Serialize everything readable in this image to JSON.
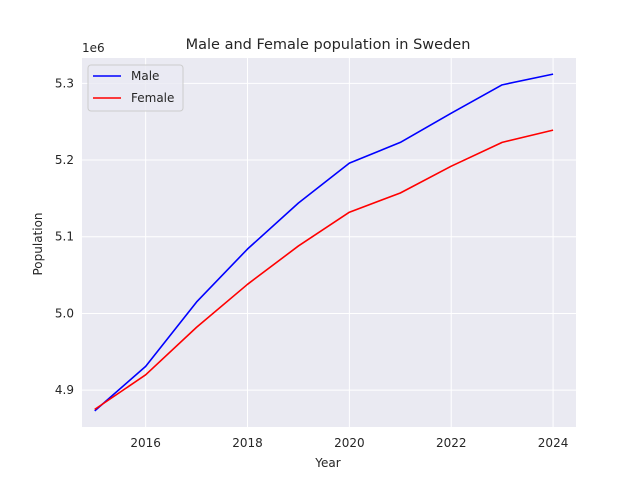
{
  "chart_data": {
    "type": "line",
    "title": "Male and Female population in Sweden",
    "xlabel": "Year",
    "ylabel": "Population",
    "y_offset_label": "1e6",
    "xlim": [
      2014.75,
      2024.45
    ],
    "ylim": [
      4.852,
      5.333
    ],
    "x_ticks": [
      2016,
      2018,
      2020,
      2022,
      2024
    ],
    "y_ticks": [
      4.9,
      5.0,
      5.1,
      5.2,
      5.3
    ],
    "y_tick_labels": [
      "4.9",
      "5.0",
      "5.1",
      "5.2",
      "5.3"
    ],
    "grid": true,
    "legend_position": "top-left",
    "x": [
      2015,
      2016,
      2017,
      2018,
      2019,
      2020,
      2021,
      2022,
      2023,
      2024
    ],
    "series": [
      {
        "name": "Male",
        "color": "#0000ff",
        "values": [
          4.873,
          4.931,
          5.015,
          5.084,
          5.144,
          5.196,
          5.223,
          5.261,
          5.298,
          5.312
        ]
      },
      {
        "name": "Female",
        "color": "#ff0000",
        "values": [
          4.875,
          4.92,
          4.982,
          5.038,
          5.088,
          5.132,
          5.157,
          5.192,
          5.223,
          5.239
        ]
      }
    ]
  },
  "colors": {
    "plot_background": "#eaeaf2",
    "grid": "#ffffff",
    "text": "#262626"
  }
}
